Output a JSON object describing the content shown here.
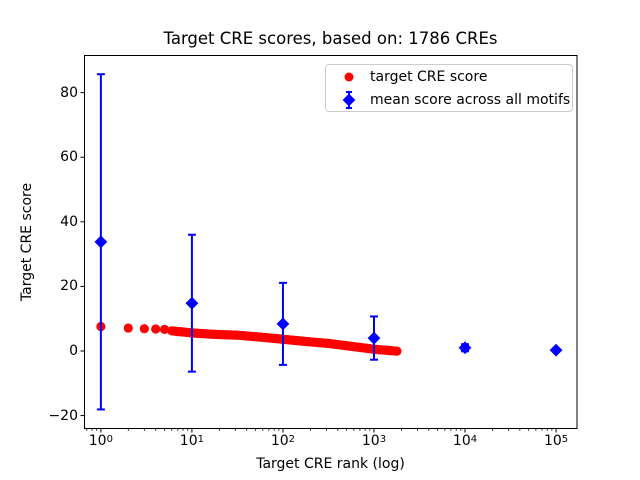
{
  "chart_data": {
    "type": "scatter",
    "title": "Target CRE scores, based on: 1786 CREs",
    "xlabel": "Target CRE rank (log)",
    "ylabel": "Target CRE score",
    "x_scale": "log",
    "xlim_log10": [
      -0.18,
      5.23
    ],
    "ylim": [
      -24,
      91.5
    ],
    "x_tick_exponents": [
      0,
      1,
      2,
      3,
      4,
      5
    ],
    "x_tick_labels": [
      "10^0",
      "10^1",
      "10^2",
      "10^3",
      "10^4",
      "10^5"
    ],
    "y_ticks": [
      -20,
      0,
      20,
      40,
      60,
      80
    ],
    "grid": false,
    "n_cres": 1786,
    "colors": {
      "target_series": "#ff0000",
      "mean_series": "#0000ff",
      "axes": "#000000",
      "legend_border": "#cccccc"
    },
    "series": [
      {
        "name": "target CRE score",
        "kind": "scatter",
        "marker": "circle",
        "color": "#ff0000",
        "n_points": 1786,
        "head_points": {
          "rank": [
            1,
            2,
            3,
            4,
            5
          ],
          "score": [
            7.6,
            7.1,
            6.9,
            6.8,
            6.7
          ]
        },
        "band_log10_rank": [
          0.778,
          1.0,
          1.25,
          1.5,
          1.75,
          2.0,
          2.25,
          2.5,
          2.75,
          3.0,
          3.15,
          3.252
        ],
        "band_score": [
          6.25,
          5.6,
          5.15,
          4.9,
          4.3,
          3.65,
          2.95,
          2.35,
          1.45,
          0.55,
          0.2,
          -0.05
        ]
      },
      {
        "name": "mean score across all motifs",
        "kind": "errorbar",
        "marker": "diamond",
        "color": "#0000ff",
        "points": {
          "rank": [
            1,
            10,
            100,
            1000,
            10000,
            100000
          ],
          "mean": [
            33.8,
            14.8,
            8.4,
            4.0,
            1.0,
            0.25
          ],
          "err": [
            51.9,
            21.2,
            12.7,
            6.7,
            1.1,
            0.4
          ]
        }
      }
    ],
    "legend": {
      "position": "upper right",
      "entries": [
        "target CRE score",
        "mean score across all motifs"
      ]
    }
  }
}
